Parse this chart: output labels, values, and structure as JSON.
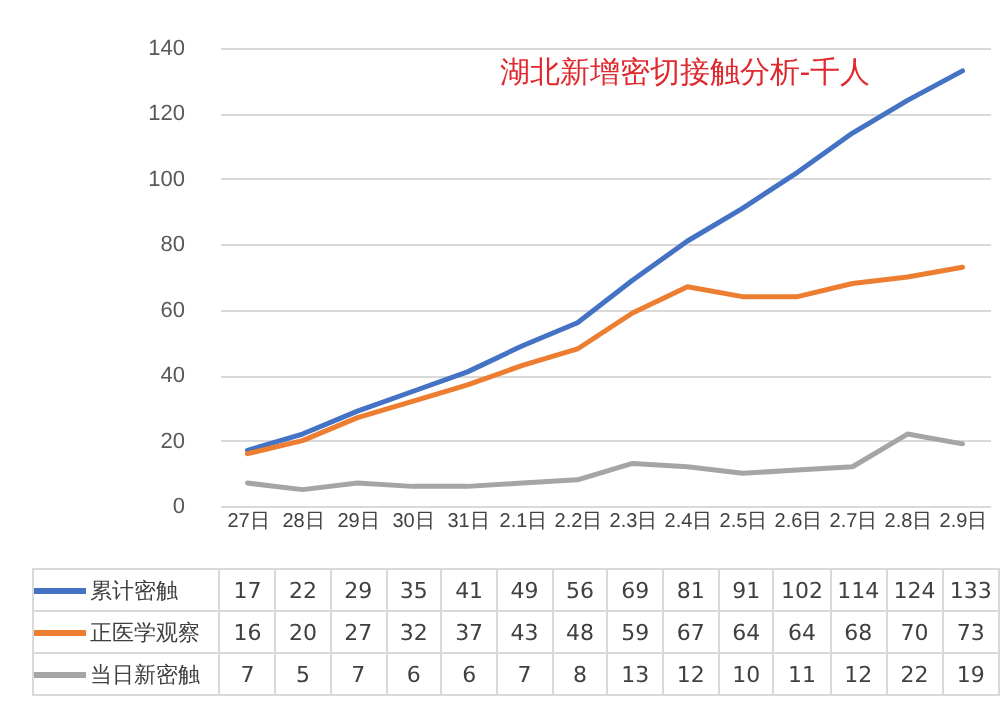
{
  "chart_data": {
    "type": "line",
    "title": "湖北新增密切接触分析-千人",
    "categories": [
      "27日",
      "28日",
      "29日",
      "30日",
      "31日",
      "2.1日",
      "2.2日",
      "2.3日",
      "2.4日",
      "2.5日",
      "2.6日",
      "2.7日",
      "2.8日",
      "2.9日"
    ],
    "series": [
      {
        "name": "累计密触",
        "color": "#4472c4",
        "values": [
          17,
          22,
          29,
          35,
          41,
          49,
          56,
          69,
          81,
          91,
          102,
          114,
          124,
          133
        ]
      },
      {
        "name": "正医学观察",
        "color": "#ed7d31",
        "values": [
          16,
          20,
          27,
          32,
          37,
          43,
          48,
          59,
          67,
          64,
          64,
          68,
          70,
          73
        ]
      },
      {
        "name": "当日新密触",
        "color": "#a5a5a5",
        "values": [
          7,
          5,
          7,
          6,
          6,
          7,
          8,
          13,
          12,
          10,
          11,
          12,
          22,
          19
        ]
      }
    ],
    "ylim": [
      0,
      140
    ],
    "yticks": [
      0,
      20,
      40,
      60,
      80,
      100,
      120,
      140
    ],
    "grid": true,
    "legend": "bottom",
    "data_labels": true
  }
}
